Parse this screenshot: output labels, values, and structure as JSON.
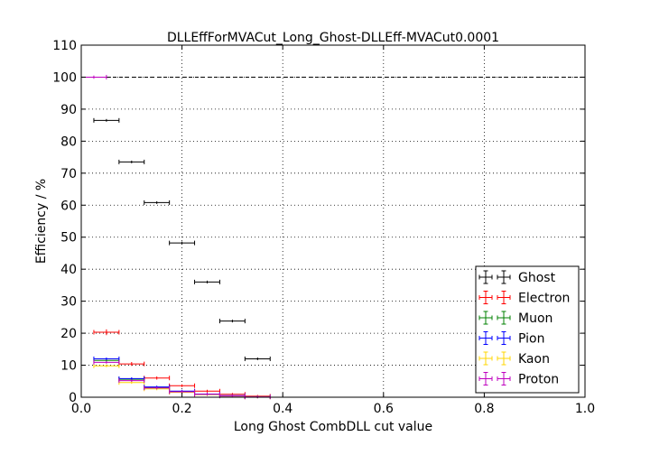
{
  "chart_data": {
    "type": "scatter",
    "title": "DLLEffForMVACut_Long_Ghost-DLLEff-MVACut0.0001",
    "xlabel": "Long Ghost CombDLL cut value",
    "ylabel": "Efficiency / %",
    "xlim": [
      0.0,
      1.0
    ],
    "ylim": [
      0,
      110
    ],
    "xticks": [
      "0.0",
      "0.2",
      "0.4",
      "0.6",
      "0.8",
      "1.0"
    ],
    "yticks": [
      "0",
      "10",
      "20",
      "30",
      "40",
      "50",
      "60",
      "70",
      "80",
      "90",
      "100",
      "110"
    ],
    "grid": true,
    "legend_position": "lower-right",
    "reference_line": 100,
    "bin_half_width": 0.025,
    "series": [
      {
        "name": "Ghost",
        "color": "#000000",
        "x": [
          0.05,
          0.1,
          0.15,
          0.2,
          0.25,
          0.3,
          0.35
        ],
        "y": [
          86.5,
          73.5,
          60.8,
          48.2,
          36.0,
          23.8,
          12.0
        ],
        "yerr": [
          0.3,
          0.3,
          0.3,
          0.3,
          0.3,
          0.3,
          0.3
        ]
      },
      {
        "name": "Electron",
        "color": "#ff0000",
        "x": [
          0.05,
          0.1,
          0.15,
          0.2,
          0.25,
          0.3,
          0.35
        ],
        "y": [
          20.3,
          10.4,
          6.0,
          3.6,
          1.9,
          0.9,
          0.3
        ],
        "yerr": [
          0.9,
          0.6,
          0.5,
          0.4,
          0.3,
          0.2,
          0.1
        ]
      },
      {
        "name": "Muon",
        "color": "#008000",
        "x": [
          0.05,
          0.1,
          0.15,
          0.2,
          0.25,
          0.3,
          0.35
        ],
        "y": [
          11.5,
          5.6,
          3.0,
          1.7,
          0.9,
          0.4,
          0.1
        ],
        "yerr": [
          0.4,
          0.3,
          0.2,
          0.2,
          0.1,
          0.1,
          0.05
        ]
      },
      {
        "name": "Pion",
        "color": "#0000ff",
        "x": [
          0.05,
          0.1,
          0.15,
          0.2,
          0.25,
          0.3,
          0.35
        ],
        "y": [
          12.0,
          5.8,
          3.2,
          1.9,
          1.0,
          0.5,
          0.15
        ],
        "yerr": [
          0.2,
          0.15,
          0.1,
          0.1,
          0.1,
          0.05,
          0.05
        ]
      },
      {
        "name": "Kaon",
        "color": "#ffd700",
        "x": [
          0.05,
          0.1,
          0.15,
          0.2,
          0.25,
          0.3,
          0.35
        ],
        "y": [
          9.8,
          4.6,
          2.6,
          1.5,
          0.8,
          0.4,
          0.1
        ],
        "yerr": [
          0.3,
          0.2,
          0.15,
          0.1,
          0.1,
          0.05,
          0.05
        ]
      },
      {
        "name": "Proton",
        "color": "#bf00bf",
        "x": [
          0.025,
          0.05,
          0.1,
          0.15,
          0.2,
          0.25,
          0.3,
          0.35
        ],
        "y": [
          100.0,
          10.9,
          5.2,
          2.9,
          1.7,
          0.9,
          0.4,
          0.1
        ],
        "yerr": [
          0.5,
          0.4,
          0.3,
          0.2,
          0.15,
          0.1,
          0.05,
          0.05
        ]
      }
    ]
  }
}
